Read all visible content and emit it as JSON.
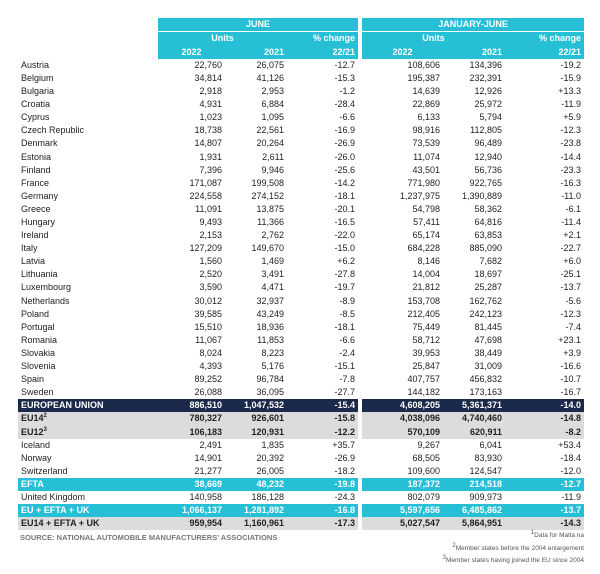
{
  "header": {
    "june": "JUNE",
    "jan_june": "JANUARY-JUNE",
    "units": "Units",
    "pct_change": "% change",
    "years": [
      "2022",
      "2021"
    ],
    "ratio": "22/21"
  },
  "rows": [
    {
      "label": "Austria",
      "values": [
        "22,760",
        "26,075",
        "-12.7",
        "108,606",
        "134,396",
        "-19.2"
      ]
    },
    {
      "label": "Belgium",
      "values": [
        "34,814",
        "41,126",
        "-15.3",
        "195,387",
        "232,391",
        "-15.9"
      ]
    },
    {
      "label": "Bulgaria",
      "values": [
        "2,918",
        "2,953",
        "-1.2",
        "14,639",
        "12,926",
        "+13.3"
      ]
    },
    {
      "label": "Croatia",
      "values": [
        "4,931",
        "6,884",
        "-28.4",
        "22,869",
        "25,972",
        "-11.9"
      ]
    },
    {
      "label": "Cyprus",
      "values": [
        "1,023",
        "1,095",
        "-6.6",
        "6,133",
        "5,794",
        "+5.9"
      ]
    },
    {
      "label": "Czech Republic",
      "values": [
        "18,738",
        "22,561",
        "-16.9",
        "98,916",
        "112,805",
        "-12.3"
      ]
    },
    {
      "label": "Denmark",
      "values": [
        "14,807",
        "20,264",
        "-26.9",
        "73,539",
        "96,489",
        "-23.8"
      ]
    },
    {
      "label": "Estonia",
      "values": [
        "1,931",
        "2,611",
        "-26.0",
        "11,074",
        "12,940",
        "-14.4"
      ]
    },
    {
      "label": "Finland",
      "values": [
        "7,396",
        "9,946",
        "-25.6",
        "43,501",
        "56,736",
        "-23.3"
      ]
    },
    {
      "label": "France",
      "values": [
        "171,087",
        "199,508",
        "-14.2",
        "771,980",
        "922,765",
        "-16.3"
      ]
    },
    {
      "label": "Germany",
      "values": [
        "224,558",
        "274,152",
        "-18.1",
        "1,237,975",
        "1,390,889",
        "-11.0"
      ]
    },
    {
      "label": "Greece",
      "values": [
        "11,091",
        "13,875",
        "-20.1",
        "54,798",
        "58,362",
        "-6.1"
      ]
    },
    {
      "label": "Hungary",
      "values": [
        "9,493",
        "11,366",
        "-16.5",
        "57,411",
        "64,816",
        "-11.4"
      ]
    },
    {
      "label": "Ireland",
      "values": [
        "2,153",
        "2,762",
        "-22.0",
        "65,174",
        "63,853",
        "+2.1"
      ]
    },
    {
      "label": "Italy",
      "values": [
        "127,209",
        "149,670",
        "-15.0",
        "684,228",
        "885,090",
        "-22.7"
      ]
    },
    {
      "label": "Latvia",
      "values": [
        "1,560",
        "1,469",
        "+6.2",
        "8,146",
        "7,682",
        "+6.0"
      ]
    },
    {
      "label": "Lithuania",
      "values": [
        "2,520",
        "3,491",
        "-27.8",
        "14,004",
        "18,697",
        "-25.1"
      ]
    },
    {
      "label": "Luxembourg",
      "values": [
        "3,590",
        "4,471",
        "-19.7",
        "21,812",
        "25,287",
        "-13.7"
      ]
    },
    {
      "label": "Netherlands",
      "values": [
        "30,012",
        "32,937",
        "-8.9",
        "153,708",
        "162,762",
        "-5.6"
      ]
    },
    {
      "label": "Poland",
      "values": [
        "39,585",
        "43,249",
        "-8.5",
        "212,405",
        "242,123",
        "-12.3"
      ]
    },
    {
      "label": "Portugal",
      "values": [
        "15,510",
        "18,936",
        "-18.1",
        "75,449",
        "81,445",
        "-7.4"
      ]
    },
    {
      "label": "Romania",
      "values": [
        "11,067",
        "11,853",
        "-6.6",
        "58,712",
        "47,698",
        "+23.1"
      ]
    },
    {
      "label": "Slovakia",
      "values": [
        "8,024",
        "8,223",
        "-2.4",
        "39,953",
        "38,449",
        "+3.9"
      ]
    },
    {
      "label": "Slovenia",
      "values": [
        "4,393",
        "5,176",
        "-15.1",
        "25,847",
        "31,009",
        "-16.6"
      ]
    },
    {
      "label": "Spain",
      "values": [
        "89,252",
        "96,784",
        "-7.8",
        "407,757",
        "456,832",
        "-10.7"
      ]
    },
    {
      "label": "Sweden",
      "values": [
        "26,088",
        "36,095",
        "-27.7",
        "144,182",
        "173,163",
        "-16.7"
      ]
    },
    {
      "label": "EUROPEAN UNION",
      "values": [
        "886,510",
        "1,047,532",
        "-15.4",
        "4,608,205",
        "5,361,371",
        "-14.0"
      ]
    },
    {
      "label": "EU14",
      "sup": "2",
      "values": [
        "780,327",
        "926,601",
        "-15.8",
        "4,038,096",
        "4,740,460",
        "-14.8"
      ]
    },
    {
      "label": "EU12",
      "sup": "3",
      "values": [
        "106,183",
        "120,931",
        "-12.2",
        "570,109",
        "620,911",
        "-8.2"
      ]
    },
    {
      "label": "Iceland",
      "values": [
        "2,491",
        "1,835",
        "+35.7",
        "9,267",
        "6,041",
        "+53.4"
      ]
    },
    {
      "label": "Norway",
      "values": [
        "14,901",
        "20,392",
        "-26.9",
        "68,505",
        "83,930",
        "-18.4"
      ]
    },
    {
      "label": "Switzerland",
      "values": [
        "21,277",
        "26,005",
        "-18.2",
        "109,600",
        "124,547",
        "-12.0"
      ]
    },
    {
      "label": "EFTA",
      "values": [
        "38,669",
        "48,232",
        "-19.8",
        "187,372",
        "214,518",
        "-12.7"
      ]
    },
    {
      "label": "United Kingdom",
      "values": [
        "140,958",
        "186,128",
        "-24.3",
        "802,079",
        "909,973",
        "-11.9"
      ]
    },
    {
      "label": "EU + EFTA + UK",
      "values": [
        "1,066,137",
        "1,281,892",
        "-16.8",
        "5,597,656",
        "6,485,862",
        "-13.7"
      ]
    },
    {
      "label": "EU14 + EFTA + UK",
      "values": [
        "959,954",
        "1,160,961",
        "-17.3",
        "5,027,547",
        "5,864,951",
        "-14.3"
      ]
    }
  ],
  "source": "SOURCE: NATIONAL AUTOMOBILE MANUFACTURERS' ASSOCIATIONS",
  "footnotes": [
    {
      "sup": "1",
      "text": "Data for Malta na"
    },
    {
      "sup": "2",
      "text": "Member states before the 2004 enlargement"
    },
    {
      "sup": "3",
      "text": "Member states having joined the EU since 2004"
    }
  ]
}
